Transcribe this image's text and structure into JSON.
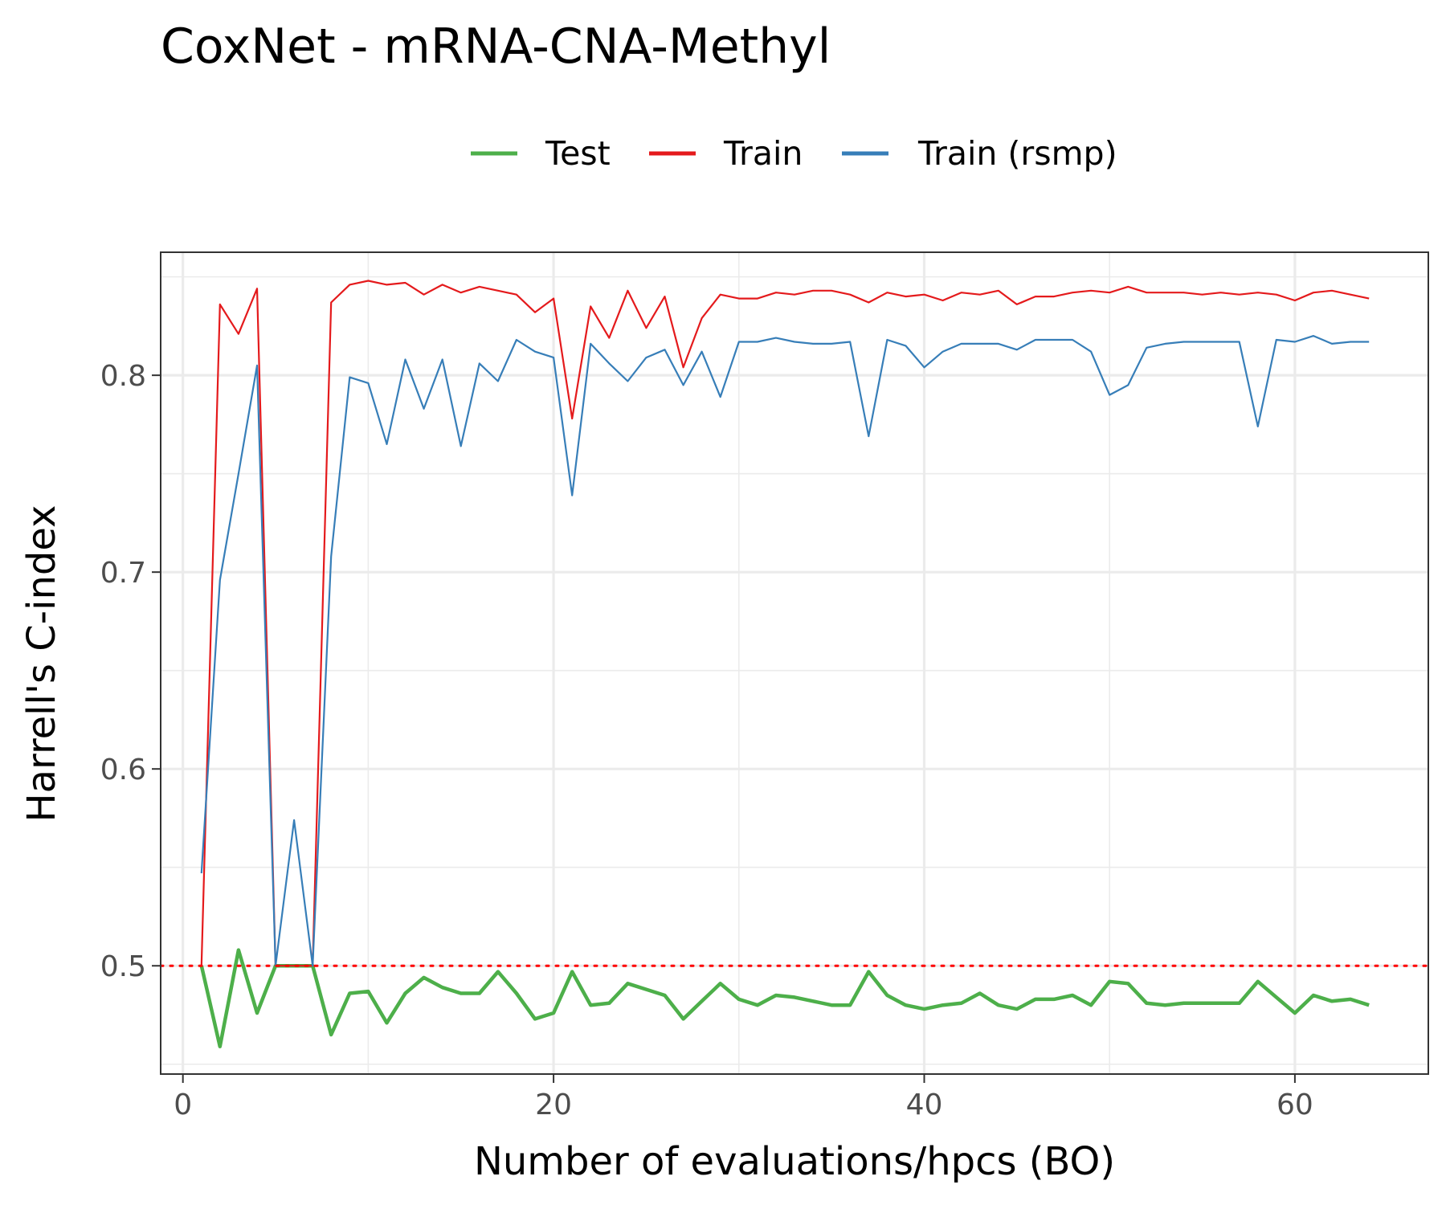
{
  "chart_data": {
    "type": "line",
    "title": "CoxNet - mRNA-CNA-Methyl",
    "xlabel": "Number of evaluations/hpcs (BO)",
    "ylabel": "Harrell's C-index",
    "xlim": [
      -1.2,
      67.2
    ],
    "ylim": [
      0.445,
      0.8625
    ],
    "x_ticks": [
      0,
      20,
      40,
      60
    ],
    "y_ticks": [
      0.5,
      0.6,
      0.7,
      0.8
    ],
    "x_tick_labels": [
      "0",
      "20",
      "40",
      "60"
    ],
    "y_tick_labels": [
      "0.5",
      "0.6",
      "0.7",
      "0.8"
    ],
    "grid": true,
    "legend_position": "top",
    "reference_line": {
      "y": 0.5,
      "style": "dotted",
      "color": "#ff0000"
    },
    "x": [
      1,
      2,
      3,
      4,
      5,
      6,
      7,
      8,
      9,
      10,
      11,
      12,
      13,
      14,
      15,
      16,
      17,
      18,
      19,
      20,
      21,
      22,
      23,
      24,
      25,
      26,
      27,
      28,
      29,
      30,
      31,
      32,
      33,
      34,
      35,
      36,
      37,
      38,
      39,
      40,
      41,
      42,
      43,
      44,
      45,
      46,
      47,
      48,
      49,
      50,
      51,
      52,
      53,
      54,
      55,
      56,
      57,
      58,
      59,
      60,
      61,
      62,
      63,
      64
    ],
    "series": [
      {
        "name": "Test",
        "color": "#4daf4a",
        "width": 4.5,
        "values": [
          0.5,
          0.459,
          0.508,
          0.476,
          0.5,
          0.5,
          0.5,
          0.465,
          0.486,
          0.487,
          0.471,
          0.486,
          0.494,
          0.489,
          0.486,
          0.486,
          0.497,
          0.486,
          0.473,
          0.476,
          0.497,
          0.48,
          0.481,
          0.491,
          0.488,
          0.485,
          0.473,
          0.482,
          0.491,
          0.483,
          0.48,
          0.485,
          0.484,
          0.482,
          0.48,
          0.48,
          0.497,
          0.485,
          0.48,
          0.478,
          0.48,
          0.481,
          0.486,
          0.48,
          0.478,
          0.483,
          0.483,
          0.485,
          0.48,
          0.492,
          0.491,
          0.481,
          0.48,
          0.481,
          0.481,
          0.481,
          0.481,
          0.492,
          0.484,
          0.476,
          0.485,
          0.482,
          0.483,
          0.48
        ]
      },
      {
        "name": "Train",
        "color": "#e41a1c",
        "width": 2.2,
        "values": [
          0.5,
          0.836,
          0.821,
          0.844,
          0.5,
          0.5,
          0.5,
          0.837,
          0.846,
          0.848,
          0.846,
          0.847,
          0.841,
          0.846,
          0.842,
          0.845,
          0.843,
          0.841,
          0.832,
          0.839,
          0.778,
          0.835,
          0.819,
          0.843,
          0.824,
          0.84,
          0.804,
          0.829,
          0.841,
          0.839,
          0.839,
          0.842,
          0.841,
          0.843,
          0.843,
          0.841,
          0.837,
          0.842,
          0.84,
          0.841,
          0.838,
          0.842,
          0.841,
          0.843,
          0.836,
          0.84,
          0.84,
          0.842,
          0.843,
          0.842,
          0.845,
          0.842,
          0.842,
          0.842,
          0.841,
          0.842,
          0.841,
          0.842,
          0.841,
          0.838,
          0.842,
          0.843,
          0.841,
          0.839
        ]
      },
      {
        "name": "Train (rsmp)",
        "color": "#377eb8",
        "width": 2.2,
        "values": [
          0.547,
          0.696,
          0.75,
          0.805,
          0.5,
          0.574,
          0.5,
          0.708,
          0.799,
          0.796,
          0.765,
          0.808,
          0.783,
          0.808,
          0.764,
          0.806,
          0.797,
          0.818,
          0.812,
          0.809,
          0.739,
          0.816,
          0.806,
          0.797,
          0.809,
          0.813,
          0.795,
          0.812,
          0.789,
          0.817,
          0.817,
          0.819,
          0.817,
          0.816,
          0.816,
          0.817,
          0.769,
          0.818,
          0.815,
          0.804,
          0.812,
          0.816,
          0.816,
          0.816,
          0.813,
          0.818,
          0.818,
          0.818,
          0.812,
          0.79,
          0.795,
          0.814,
          0.816,
          0.817,
          0.817,
          0.817,
          0.817,
          0.774,
          0.818,
          0.817,
          0.82,
          0.816,
          0.817,
          0.817
        ]
      }
    ]
  }
}
